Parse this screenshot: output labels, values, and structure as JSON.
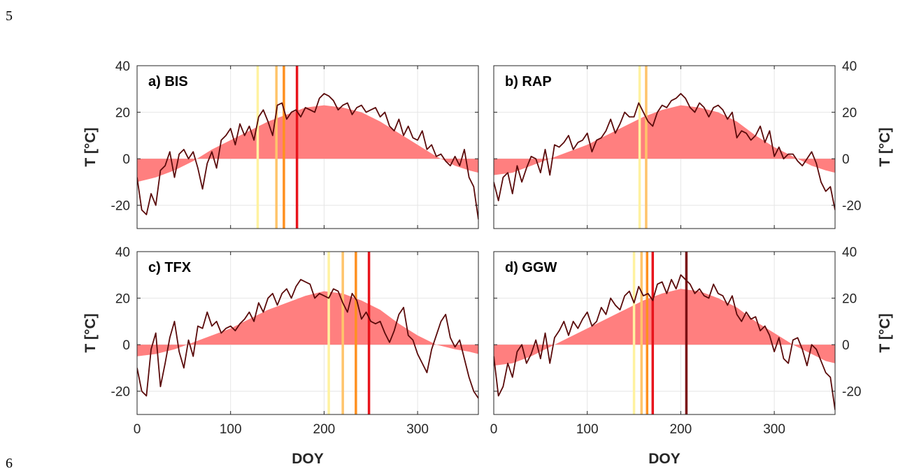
{
  "page_numbers": {
    "top": "5",
    "bottom": "6"
  },
  "colors": {
    "climatology_fill": "#ff7f7f",
    "temperature_line": "#5a0a0a",
    "grid": "#e6e6e6",
    "axis": "#262626",
    "marker_light_yellow": "#fff2a0",
    "marker_light_orange": "#ffc46b",
    "marker_orange": "#ff9020",
    "marker_red": "#e8141c",
    "marker_dark_red": "#7a0f12"
  },
  "chart_data": [
    {
      "id": "a",
      "type": "area",
      "title": "a) BIS",
      "ylabel": "T [°C]",
      "xlabel": "",
      "xlim": [
        0,
        365
      ],
      "ylim": [
        -30,
        40
      ],
      "xticks": [
        0,
        100,
        200,
        300
      ],
      "xtick_labels": [
        "",
        "",
        "",
        ""
      ],
      "yticks": [
        -20,
        0,
        20,
        40
      ],
      "ytick_labels": [
        "-20",
        "0",
        "20",
        "40"
      ],
      "yaxis_side": "left",
      "grid": true,
      "vertical_markers": [
        {
          "doy": 129,
          "color": "marker_light_yellow"
        },
        {
          "doy": 149,
          "color": "marker_light_orange"
        },
        {
          "doy": 157,
          "color": "marker_orange"
        },
        {
          "doy": 171,
          "color": "marker_red"
        }
      ],
      "series": [
        {
          "kind": "climatology_fill",
          "x": [
            0,
            20,
            40,
            60,
            80,
            100,
            120,
            140,
            160,
            180,
            200,
            220,
            240,
            260,
            280,
            300,
            320,
            340,
            355,
            365
          ],
          "y": [
            -10,
            -8,
            -5,
            -1,
            4,
            8,
            12,
            16,
            19,
            22,
            23,
            22,
            20,
            16,
            11,
            6,
            1,
            -3,
            -5,
            -6
          ]
        },
        {
          "kind": "temperature_line",
          "x": [
            0,
            5,
            10,
            15,
            20,
            25,
            30,
            35,
            40,
            45,
            50,
            55,
            60,
            65,
            70,
            75,
            80,
            85,
            90,
            95,
            100,
            105,
            110,
            115,
            120,
            125,
            130,
            135,
            140,
            145,
            150,
            155,
            160,
            165,
            170,
            175,
            180,
            185,
            190,
            195,
            200,
            205,
            210,
            215,
            220,
            225,
            230,
            235,
            240,
            245,
            250,
            255,
            260,
            265,
            270,
            275,
            280,
            285,
            290,
            295,
            300,
            305,
            310,
            315,
            320,
            325,
            330,
            335,
            340,
            345,
            350,
            355,
            360,
            365
          ],
          "y": [
            -8,
            -22,
            -24,
            -15,
            -20,
            -5,
            -3,
            3,
            -8,
            2,
            4,
            0,
            3,
            -4,
            -13,
            -2,
            3,
            -4,
            8,
            10,
            13,
            6,
            15,
            10,
            14,
            8,
            18,
            21,
            16,
            10,
            23,
            24,
            17,
            20,
            21,
            18,
            22,
            21,
            20,
            26,
            28,
            27,
            25,
            21,
            23,
            24,
            19,
            22,
            23,
            20,
            21,
            22,
            18,
            20,
            14,
            12,
            17,
            10,
            14,
            9,
            8,
            12,
            4,
            6,
            1,
            2,
            -1,
            -3,
            1,
            -3,
            4,
            -8,
            -12,
            -26
          ]
        }
      ]
    },
    {
      "id": "b",
      "type": "area",
      "title": "b) RAP",
      "ylabel": "T [°C]",
      "xlabel": "",
      "xlim": [
        0,
        365
      ],
      "ylim": [
        -30,
        40
      ],
      "xticks": [
        0,
        100,
        200,
        300
      ],
      "xtick_labels": [
        "",
        "",
        "",
        ""
      ],
      "yticks": [
        -20,
        0,
        20,
        40
      ],
      "ytick_labels": [
        "-20",
        "0",
        "20",
        "40"
      ],
      "yaxis_side": "right",
      "grid": true,
      "vertical_markers": [
        {
          "doy": 156,
          "color": "marker_light_yellow"
        },
        {
          "doy": 163,
          "color": "marker_light_orange"
        }
      ],
      "series": [
        {
          "kind": "climatology_fill",
          "x": [
            0,
            20,
            40,
            60,
            80,
            100,
            120,
            140,
            160,
            180,
            200,
            220,
            240,
            260,
            280,
            300,
            320,
            340,
            355,
            365
          ],
          "y": [
            -7,
            -6,
            -3,
            0,
            3,
            6,
            10,
            14,
            18,
            21,
            23,
            22,
            20,
            16,
            10,
            5,
            1,
            -3,
            -5,
            -6
          ]
        },
        {
          "kind": "temperature_line",
          "x": [
            0,
            5,
            10,
            15,
            20,
            25,
            30,
            35,
            40,
            45,
            50,
            55,
            60,
            65,
            70,
            75,
            80,
            85,
            90,
            95,
            100,
            105,
            110,
            115,
            120,
            125,
            130,
            135,
            140,
            145,
            150,
            155,
            160,
            165,
            170,
            175,
            180,
            185,
            190,
            195,
            200,
            205,
            210,
            215,
            220,
            225,
            230,
            235,
            240,
            245,
            250,
            255,
            260,
            265,
            270,
            275,
            280,
            285,
            290,
            295,
            300,
            305,
            310,
            315,
            320,
            325,
            330,
            335,
            340,
            345,
            350,
            355,
            360,
            365
          ],
          "y": [
            -10,
            -18,
            -8,
            -6,
            -15,
            -3,
            -10,
            -4,
            1,
            0,
            -6,
            4,
            -7,
            6,
            5,
            7,
            10,
            4,
            7,
            8,
            11,
            3,
            8,
            9,
            12,
            17,
            11,
            15,
            20,
            18,
            18,
            24,
            20,
            16,
            14,
            20,
            23,
            22,
            25,
            26,
            28,
            26,
            22,
            20,
            24,
            22,
            18,
            22,
            23,
            21,
            17,
            20,
            9,
            12,
            11,
            8,
            10,
            14,
            7,
            12,
            1,
            5,
            0,
            2,
            2,
            -1,
            -3,
            0,
            3,
            -2,
            -10,
            -14,
            -12,
            -22
          ]
        }
      ]
    },
    {
      "id": "c",
      "type": "area",
      "title": "c) TFX",
      "ylabel": "T [°C]",
      "xlabel": "DOY",
      "xlim": [
        0,
        365
      ],
      "ylim": [
        -30,
        40
      ],
      "xticks": [
        0,
        100,
        200,
        300
      ],
      "xtick_labels": [
        "0",
        "100",
        "200",
        "300"
      ],
      "yticks": [
        -20,
        0,
        20,
        40
      ],
      "ytick_labels": [
        "-20",
        "0",
        "20",
        "40"
      ],
      "yaxis_side": "left",
      "grid": true,
      "vertical_markers": [
        {
          "doy": 205,
          "color": "marker_light_yellow"
        },
        {
          "doy": 220,
          "color": "marker_light_orange"
        },
        {
          "doy": 234,
          "color": "marker_orange"
        },
        {
          "doy": 248,
          "color": "marker_red"
        }
      ],
      "series": [
        {
          "kind": "climatology_fill",
          "x": [
            0,
            20,
            40,
            60,
            80,
            100,
            120,
            140,
            160,
            180,
            200,
            220,
            240,
            260,
            280,
            300,
            320,
            340,
            355,
            365
          ],
          "y": [
            -5,
            -4,
            -2,
            1,
            4,
            7,
            11,
            15,
            18,
            21,
            23,
            22,
            19,
            15,
            9,
            4,
            0,
            -2,
            -3,
            -4
          ]
        },
        {
          "kind": "temperature_line",
          "x": [
            0,
            5,
            10,
            15,
            20,
            25,
            30,
            35,
            40,
            45,
            50,
            55,
            60,
            65,
            70,
            75,
            80,
            85,
            90,
            95,
            100,
            105,
            110,
            115,
            120,
            125,
            130,
            135,
            140,
            145,
            150,
            155,
            160,
            165,
            170,
            175,
            180,
            185,
            190,
            195,
            200,
            205,
            210,
            215,
            220,
            225,
            230,
            235,
            240,
            245,
            250,
            255,
            260,
            265,
            270,
            275,
            280,
            285,
            290,
            295,
            300,
            305,
            310,
            315,
            320,
            325,
            330,
            335,
            340,
            345,
            350,
            355,
            360,
            365
          ],
          "y": [
            -10,
            -20,
            -22,
            -2,
            5,
            -18,
            -8,
            3,
            10,
            -3,
            -10,
            2,
            -5,
            8,
            7,
            14,
            8,
            10,
            5,
            7,
            8,
            6,
            9,
            11,
            14,
            10,
            18,
            14,
            20,
            22,
            17,
            22,
            24,
            20,
            25,
            28,
            27,
            26,
            20,
            22,
            21,
            20,
            24,
            23,
            18,
            14,
            22,
            19,
            11,
            14,
            10,
            9,
            10,
            5,
            1,
            6,
            13,
            16,
            4,
            2,
            -4,
            -8,
            -12,
            -2,
            4,
            10,
            13,
            3,
            -1,
            2,
            -6,
            -14,
            -20,
            -23
          ]
        }
      ]
    },
    {
      "id": "d",
      "type": "area",
      "title": "d) GGW",
      "ylabel": "T [°C]",
      "xlabel": "DOY",
      "xlim": [
        0,
        365
      ],
      "ylim": [
        -30,
        40
      ],
      "xticks": [
        0,
        100,
        200,
        300
      ],
      "xtick_labels": [
        "0",
        "100",
        "200",
        "300"
      ],
      "yticks": [
        -20,
        0,
        20,
        40
      ],
      "ytick_labels": [
        "-20",
        "0",
        "20",
        "40"
      ],
      "yaxis_side": "right",
      "grid": true,
      "vertical_markers": [
        {
          "doy": 150,
          "color": "marker_light_yellow"
        },
        {
          "doy": 158,
          "color": "marker_light_orange"
        },
        {
          "doy": 164,
          "color": "marker_orange"
        },
        {
          "doy": 170,
          "color": "marker_red"
        },
        {
          "doy": 206,
          "color": "marker_dark_red"
        }
      ],
      "series": [
        {
          "kind": "climatology_fill",
          "x": [
            0,
            20,
            40,
            60,
            80,
            100,
            120,
            140,
            160,
            180,
            200,
            220,
            240,
            260,
            280,
            300,
            320,
            340,
            355,
            365
          ],
          "y": [
            -9,
            -8,
            -5,
            -1,
            3,
            7,
            11,
            15,
            19,
            22,
            24,
            23,
            20,
            16,
            10,
            5,
            0,
            -4,
            -7,
            -8
          ]
        },
        {
          "kind": "temperature_line",
          "x": [
            0,
            5,
            10,
            15,
            20,
            25,
            30,
            35,
            40,
            45,
            50,
            55,
            60,
            65,
            70,
            75,
            80,
            85,
            90,
            95,
            100,
            105,
            110,
            115,
            120,
            125,
            130,
            135,
            140,
            145,
            150,
            155,
            160,
            165,
            170,
            175,
            180,
            185,
            190,
            195,
            200,
            205,
            210,
            215,
            220,
            225,
            230,
            235,
            240,
            245,
            250,
            255,
            260,
            265,
            270,
            275,
            280,
            285,
            290,
            295,
            300,
            305,
            310,
            315,
            320,
            325,
            330,
            335,
            340,
            345,
            350,
            355,
            360,
            365
          ],
          "y": [
            -5,
            -22,
            -18,
            -8,
            -14,
            -3,
            0,
            -8,
            -4,
            2,
            -6,
            5,
            -8,
            3,
            6,
            10,
            4,
            10,
            7,
            11,
            14,
            8,
            10,
            16,
            13,
            20,
            17,
            15,
            21,
            23,
            18,
            25,
            21,
            22,
            19,
            26,
            27,
            22,
            28,
            24,
            30,
            28,
            26,
            22,
            24,
            21,
            20,
            26,
            22,
            21,
            17,
            21,
            13,
            10,
            14,
            11,
            12,
            6,
            8,
            4,
            -3,
            3,
            -6,
            -8,
            2,
            3,
            -2,
            -9,
            0,
            -2,
            -7,
            -12,
            -14,
            -28
          ]
        }
      ]
    }
  ]
}
